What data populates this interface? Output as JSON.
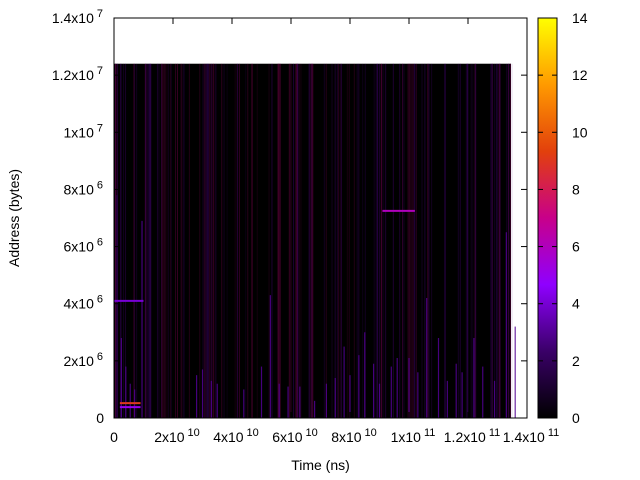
{
  "chart_data": {
    "type": "heatmap",
    "title": "",
    "xlabel": "Time (ns)",
    "ylabel": "Address (bytes)",
    "xlim": [
      0,
      140000000000
    ],
    "ylim": [
      0,
      14000000
    ],
    "x_ticks": [
      {
        "value": 0,
        "mantissa": "0",
        "exp": ""
      },
      {
        "value": 20000000000,
        "mantissa": "2x10",
        "exp": "10"
      },
      {
        "value": 40000000000,
        "mantissa": "4x10",
        "exp": "10"
      },
      {
        "value": 60000000000,
        "mantissa": "6x10",
        "exp": "10"
      },
      {
        "value": 80000000000,
        "mantissa": "8x10",
        "exp": "10"
      },
      {
        "value": 100000000000,
        "mantissa": "1x10",
        "exp": "11"
      },
      {
        "value": 120000000000,
        "mantissa": "1.2x10",
        "exp": "11"
      },
      {
        "value": 140000000000,
        "mantissa": "1.4x10",
        "exp": "11"
      }
    ],
    "y_ticks": [
      {
        "value": 0,
        "mantissa": "0",
        "exp": ""
      },
      {
        "value": 2000000,
        "mantissa": "2x10",
        "exp": "6"
      },
      {
        "value": 4000000,
        "mantissa": "4x10",
        "exp": "6"
      },
      {
        "value": 6000000,
        "mantissa": "6x10",
        "exp": "6"
      },
      {
        "value": 8000000,
        "mantissa": "8x10",
        "exp": "6"
      },
      {
        "value": 10000000,
        "mantissa": "1x10",
        "exp": "7"
      },
      {
        "value": 12000000,
        "mantissa": "1.2x10",
        "exp": "7"
      },
      {
        "value": 14000000,
        "mantissa": "1.4x10",
        "exp": "7"
      }
    ],
    "colorbar": {
      "min": 0,
      "max": 14,
      "ticks": [
        "0",
        "2",
        "4",
        "6",
        "8",
        "10",
        "12",
        "14"
      ],
      "palette": [
        "#000000",
        "#3a0068",
        "#8f00ff",
        "#c8008a",
        "#e2400c",
        "#ff9a00",
        "#ffff00"
      ]
    },
    "data_extent": {
      "x": [
        0,
        140000000000
      ],
      "y": [
        0,
        12400000
      ]
    },
    "background_color": "#000000",
    "hot_lines": [
      {
        "x_start": 0,
        "x_end": 10000000000,
        "y": 4100000,
        "value": 4
      },
      {
        "x_start": 91000000000,
        "x_end": 102000000000,
        "y": 7250000,
        "value": 6
      },
      {
        "x_start": 2000000000,
        "x_end": 9000000000,
        "y": 520000,
        "value": 9
      },
      {
        "x_start": 2000000000,
        "x_end": 9000000000,
        "y": 380000,
        "value": 5
      }
    ],
    "spikes": [
      {
        "x": 1000000000,
        "y_top": 7800000,
        "value": 2
      },
      {
        "x": 2500000000,
        "y_top": 2800000,
        "value": 3
      },
      {
        "x": 4000000000,
        "y_top": 1800000,
        "value": 3
      },
      {
        "x": 5500000000,
        "y_top": 1200000,
        "value": 3
      },
      {
        "x": 7000000000,
        "y_top": 1000000,
        "value": 3
      },
      {
        "x": 9500000000,
        "y_top": 6900000,
        "value": 3
      },
      {
        "x": 28000000000,
        "y_top": 1500000,
        "value": 3
      },
      {
        "x": 30000000000,
        "y_top": 1700000,
        "value": 3
      },
      {
        "x": 33000000000,
        "y_top": 1300000,
        "value": 3
      },
      {
        "x": 35000000000,
        "y_top": 1200000,
        "value": 3
      },
      {
        "x": 44000000000,
        "y_top": 1000000,
        "value": 3
      },
      {
        "x": 50000000000,
        "y_top": 1800000,
        "value": 3
      },
      {
        "x": 53000000000,
        "y_top": 4300000,
        "value": 3
      },
      {
        "x": 56000000000,
        "y_top": 1200000,
        "value": 3
      },
      {
        "x": 59000000000,
        "y_top": 1100000,
        "value": 3
      },
      {
        "x": 63000000000,
        "y_top": 1100000,
        "value": 3
      },
      {
        "x": 68000000000,
        "y_top": 600000,
        "value": 3
      },
      {
        "x": 72000000000,
        "y_top": 1200000,
        "value": 3
      },
      {
        "x": 75000000000,
        "y_top": 1400000,
        "value": 3
      },
      {
        "x": 78000000000,
        "y_top": 2500000,
        "value": 3
      },
      {
        "x": 80000000000,
        "y_top": 1500000,
        "value": 3
      },
      {
        "x": 83000000000,
        "y_top": 2200000,
        "value": 3
      },
      {
        "x": 85000000000,
        "y_top": 3000000,
        "value": 3
      },
      {
        "x": 88000000000,
        "y_top": 1900000,
        "value": 3
      },
      {
        "x": 90000000000,
        "y_top": 1200000,
        "value": 3
      },
      {
        "x": 94000000000,
        "y_top": 1800000,
        "value": 3
      },
      {
        "x": 96000000000,
        "y_top": 2100000,
        "value": 3
      },
      {
        "x": 100000000000,
        "y_top": 2100000,
        "value": 3
      },
      {
        "x": 103000000000,
        "y_top": 1600000,
        "value": 3
      },
      {
        "x": 106000000000,
        "y_top": 4200000,
        "value": 3
      },
      {
        "x": 110000000000,
        "y_top": 2800000,
        "value": 3
      },
      {
        "x": 113000000000,
        "y_top": 1300000,
        "value": 3
      },
      {
        "x": 116000000000,
        "y_top": 1900000,
        "value": 3
      },
      {
        "x": 118000000000,
        "y_top": 1600000,
        "value": 3
      },
      {
        "x": 122000000000,
        "y_top": 2800000,
        "value": 3
      },
      {
        "x": 125000000000,
        "y_top": 1800000,
        "value": 3
      },
      {
        "x": 129000000000,
        "y_top": 1300000,
        "value": 3
      },
      {
        "x": 133000000000,
        "y_top": 6500000,
        "value": 3
      },
      {
        "x": 136000000000,
        "y_top": 3200000,
        "value": 3
      }
    ]
  }
}
